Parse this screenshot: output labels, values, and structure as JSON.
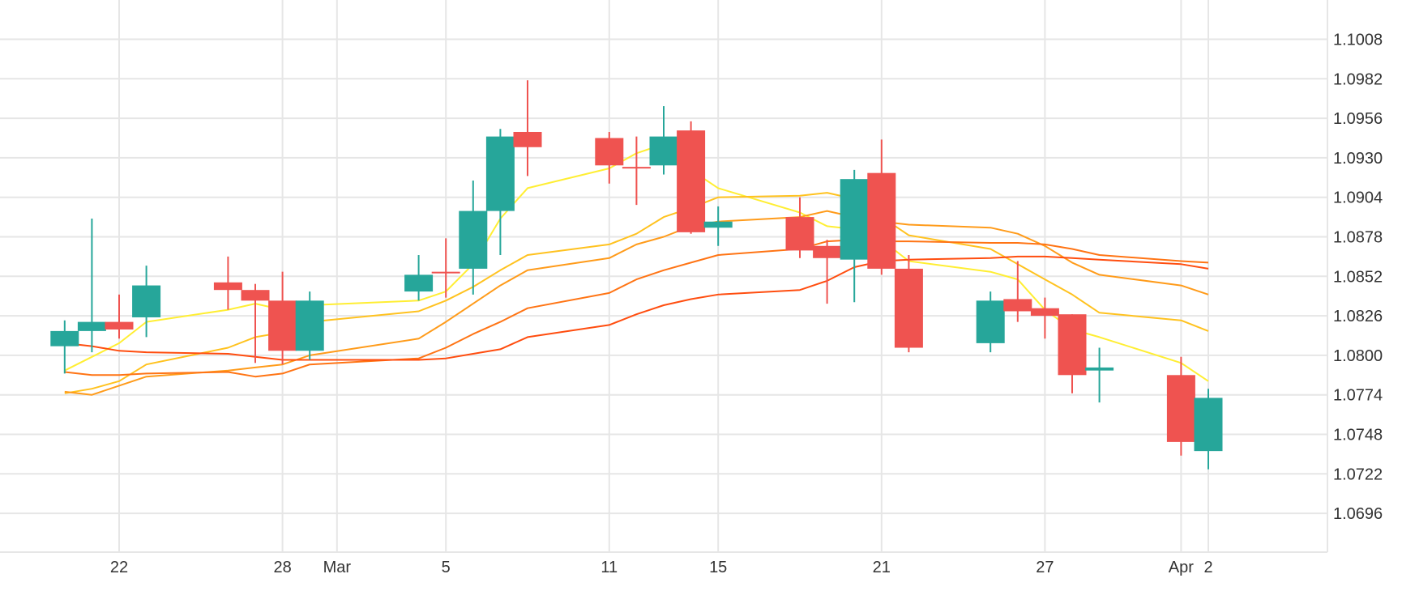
{
  "chart_data": {
    "type": "candlestick",
    "title": "",
    "xlabel": "",
    "ylabel": "",
    "ylim": [
      1.067,
      1.1034
    ],
    "grid": true,
    "colors": {
      "up": "#26a69a",
      "down": "#ef5350",
      "grid": "#e6e6e6",
      "axis_text": "#333333"
    },
    "y_ticks": [
      "1.1008",
      "1.0982",
      "1.0956",
      "1.0930",
      "1.0904",
      "1.0878",
      "1.0852",
      "1.0826",
      "1.0800",
      "1.0774",
      "1.0748",
      "1.0722",
      "1.0696"
    ],
    "x_ticks": [
      {
        "label": "22",
        "date": "2024-02-22"
      },
      {
        "label": "28",
        "date": "2024-02-28"
      },
      {
        "label": "Mar",
        "date": "2024-03-01"
      },
      {
        "label": "5",
        "date": "2024-03-05"
      },
      {
        "label": "11",
        "date": "2024-03-11"
      },
      {
        "label": "15",
        "date": "2024-03-15"
      },
      {
        "label": "21",
        "date": "2024-03-21"
      },
      {
        "label": "27",
        "date": "2024-03-27"
      },
      {
        "label": "Apr",
        "date": "2024-04-01"
      },
      {
        "label": "2",
        "date": "2024-04-02"
      }
    ],
    "candles": [
      {
        "date": "2024-02-20",
        "open": 1.0806,
        "high": 1.0823,
        "low": 1.0788,
        "close": 1.0816
      },
      {
        "date": "2024-02-21",
        "open": 1.0816,
        "high": 1.089,
        "low": 1.0802,
        "close": 1.0822
      },
      {
        "date": "2024-02-22",
        "open": 1.0822,
        "high": 1.084,
        "low": 1.0811,
        "close": 1.0817
      },
      {
        "date": "2024-02-23",
        "open": 1.0825,
        "high": 1.0859,
        "low": 1.0812,
        "close": 1.0846
      },
      {
        "date": "2024-02-26",
        "open": 1.0848,
        "high": 1.0865,
        "low": 1.083,
        "close": 1.0843
      },
      {
        "date": "2024-02-27",
        "open": 1.0843,
        "high": 1.0847,
        "low": 1.0795,
        "close": 1.0836
      },
      {
        "date": "2024-02-28",
        "open": 1.0836,
        "high": 1.0855,
        "low": 1.0794,
        "close": 1.0803
      },
      {
        "date": "2024-02-29",
        "open": 1.0803,
        "high": 1.0842,
        "low": 1.0797,
        "close": 1.0836
      },
      {
        "date": "2024-03-04",
        "open": 1.0842,
        "high": 1.0866,
        "low": 1.0836,
        "close": 1.0853
      },
      {
        "date": "2024-03-05",
        "open": 1.0855,
        "high": 1.0877,
        "low": 1.0838,
        "close": 1.0854
      },
      {
        "date": "2024-03-06",
        "open": 1.0857,
        "high": 1.0915,
        "low": 1.084,
        "close": 1.0895
      },
      {
        "date": "2024-03-07",
        "open": 1.0895,
        "high": 1.0949,
        "low": 1.0866,
        "close": 1.0944
      },
      {
        "date": "2024-03-08",
        "open": 1.0947,
        "high": 1.0981,
        "low": 1.0918,
        "close": 1.0937
      },
      {
        "date": "2024-03-11",
        "open": 1.0943,
        "high": 1.0947,
        "low": 1.0913,
        "close": 1.0925
      },
      {
        "date": "2024-03-12",
        "open": 1.0924,
        "high": 1.0944,
        "low": 1.0899,
        "close": 1.0923
      },
      {
        "date": "2024-03-13",
        "open": 1.0925,
        "high": 1.0964,
        "low": 1.0919,
        "close": 1.0944
      },
      {
        "date": "2024-03-14",
        "open": 1.0948,
        "high": 1.0954,
        "low": 1.088,
        "close": 1.0881
      },
      {
        "date": "2024-03-15",
        "open": 1.0884,
        "high": 1.0898,
        "low": 1.0872,
        "close": 1.0888
      },
      {
        "date": "2024-03-18",
        "open": 1.0891,
        "high": 1.0904,
        "low": 1.0864,
        "close": 1.0869
      },
      {
        "date": "2024-03-19",
        "open": 1.0872,
        "high": 1.0876,
        "low": 1.0834,
        "close": 1.0864
      },
      {
        "date": "2024-03-20",
        "open": 1.0863,
        "high": 1.0922,
        "low": 1.0835,
        "close": 1.0916
      },
      {
        "date": "2024-03-21",
        "open": 1.092,
        "high": 1.0942,
        "low": 1.0853,
        "close": 1.0857
      },
      {
        "date": "2024-03-22",
        "open": 1.0857,
        "high": 1.0866,
        "low": 1.0802,
        "close": 1.0805
      },
      {
        "date": "2024-03-25",
        "open": 1.0808,
        "high": 1.0842,
        "low": 1.0802,
        "close": 1.0836
      },
      {
        "date": "2024-03-26",
        "open": 1.0837,
        "high": 1.0862,
        "low": 1.0822,
        "close": 1.0829
      },
      {
        "date": "2024-03-27",
        "open": 1.0831,
        "high": 1.0838,
        "low": 1.0811,
        "close": 1.0826
      },
      {
        "date": "2024-03-28",
        "open": 1.0827,
        "high": 1.0827,
        "low": 1.0775,
        "close": 1.0787
      },
      {
        "date": "2024-03-29",
        "open": 1.079,
        "high": 1.0805,
        "low": 1.0769,
        "close": 1.0792
      },
      {
        "date": "2024-04-01",
        "open": 1.0787,
        "high": 1.0799,
        "low": 1.0734,
        "close": 1.0743
      },
      {
        "date": "2024-04-02",
        "open": 1.0737,
        "high": 1.0778,
        "low": 1.0725,
        "close": 1.0772
      }
    ],
    "moving_averages": [
      {
        "color": "#ffee33",
        "values": [
          1.079,
          1.0799,
          1.0808,
          1.0822,
          1.083,
          1.0834,
          1.083,
          1.0833,
          1.0836,
          1.0842,
          1.086,
          1.089,
          1.091,
          1.0923,
          1.0933,
          1.0939,
          1.0922,
          1.091,
          1.0894,
          1.0885,
          1.0883,
          1.0876,
          1.0862,
          1.0855,
          1.085,
          1.083,
          1.0817,
          1.0812,
          1.0795,
          1.0783
        ]
      },
      {
        "color": "#ffc21f",
        "values": [
          1.0775,
          1.0778,
          1.0783,
          1.0794,
          1.0805,
          1.0812,
          1.0815,
          1.0822,
          1.0829,
          1.0836,
          1.0845,
          1.0856,
          1.0866,
          1.0873,
          1.088,
          1.0891,
          1.0897,
          1.0904,
          1.0905,
          1.0907,
          1.0903,
          1.0891,
          1.0879,
          1.087,
          1.086,
          1.085,
          1.084,
          1.0828,
          1.0823,
          1.0816
        ]
      },
      {
        "color": "#ff9b1a",
        "values": [
          1.0776,
          1.0774,
          1.078,
          1.0786,
          1.079,
          1.0792,
          1.0794,
          1.08,
          1.0811,
          1.0822,
          1.0834,
          1.0846,
          1.0856,
          1.0864,
          1.0873,
          1.0878,
          1.0885,
          1.0888,
          1.0891,
          1.0895,
          1.0891,
          1.0888,
          1.0886,
          1.0884,
          1.088,
          1.0872,
          1.0861,
          1.0853,
          1.0846,
          1.084
        ]
      },
      {
        "color": "#ff7414",
        "values": [
          1.0789,
          1.0787,
          1.0787,
          1.0788,
          1.0789,
          1.0786,
          1.0788,
          1.0794,
          1.0798,
          1.0805,
          1.0814,
          1.0822,
          1.0831,
          1.0841,
          1.085,
          1.0856,
          1.0861,
          1.0866,
          1.087,
          1.0875,
          1.0876,
          1.0875,
          1.0875,
          1.0874,
          1.0874,
          1.0873,
          1.087,
          1.0866,
          1.0862,
          1.0861
        ]
      },
      {
        "color": "#ff4d0f",
        "values": [
          1.0808,
          1.0806,
          1.0803,
          1.0802,
          1.0801,
          1.0799,
          1.0797,
          1.0797,
          1.0797,
          1.0798,
          1.0801,
          1.0804,
          1.0812,
          1.082,
          1.0827,
          1.0833,
          1.0837,
          1.084,
          1.0843,
          1.0849,
          1.0858,
          1.0862,
          1.0863,
          1.0864,
          1.0865,
          1.0865,
          1.0864,
          1.0863,
          1.086,
          1.0857
        ]
      }
    ]
  }
}
